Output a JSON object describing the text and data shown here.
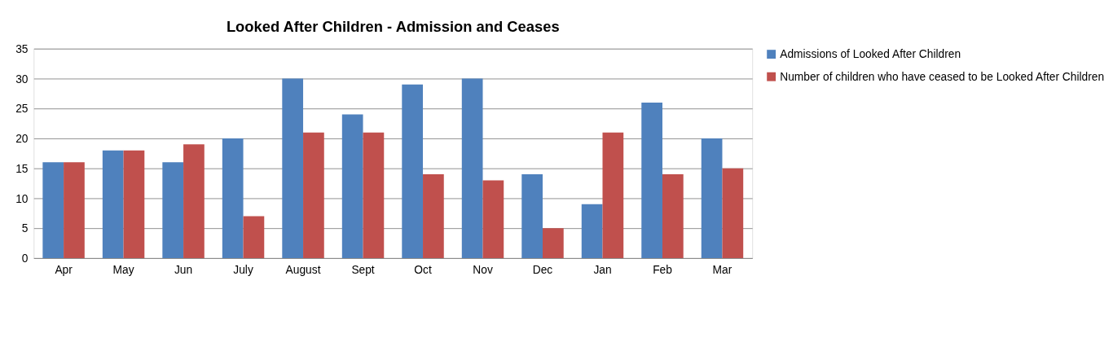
{
  "chart_data": {
    "type": "bar",
    "title": "Looked After Children - Admission and Ceases",
    "categories": [
      "Apr",
      "May",
      "Jun",
      "July",
      "August",
      "Sept",
      "Oct",
      "Nov",
      "Dec",
      "Jan",
      "Feb",
      "Mar"
    ],
    "series": [
      {
        "name": "Admissions of Looked After Children",
        "color": "#4f81bd",
        "values": [
          16,
          18,
          16,
          20,
          30,
          24,
          29,
          30,
          14,
          9,
          26,
          20
        ]
      },
      {
        "name": "Number of children who have ceased to be Looked After Children",
        "color": "#c0504d",
        "values": [
          16,
          18,
          19,
          7,
          21,
          21,
          14,
          13,
          5,
          21,
          14,
          15
        ]
      }
    ],
    "ylim": [
      0,
      35
    ],
    "yticks": [
      0,
      5,
      10,
      15,
      20,
      25,
      30,
      35
    ],
    "grid": "y",
    "legend": "right"
  }
}
